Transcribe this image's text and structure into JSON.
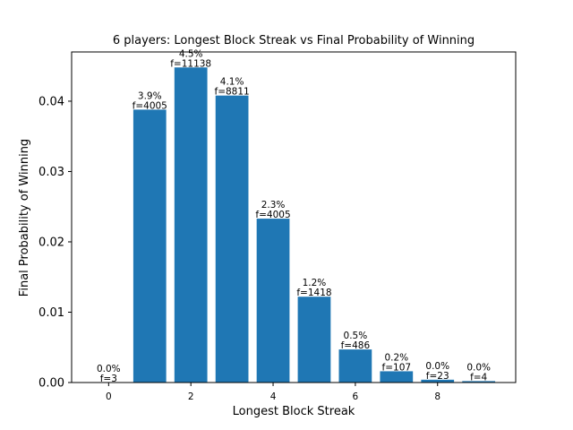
{
  "chart_data": {
    "type": "bar",
    "title": "6 players: Longest Block Streak vs Final Probability of Winning",
    "xlabel": "Longest Block Streak",
    "ylabel": "Final Probability of Winning",
    "x": [
      0,
      1,
      2,
      3,
      4,
      5,
      6,
      7,
      8,
      9
    ],
    "values": [
      0.0,
      0.0388,
      0.0448,
      0.0408,
      0.0233,
      0.0122,
      0.0047,
      0.0016,
      0.0004,
      0.0002
    ],
    "percent_labels": [
      "0.0%",
      "3.9%",
      "4.5%",
      "4.1%",
      "2.3%",
      "1.2%",
      "0.5%",
      "0.2%",
      "0.0%",
      "0.0%"
    ],
    "freq_labels": [
      "f=3",
      "f=4005",
      "f=11138",
      "f=8811",
      "f=4005",
      "f=1418",
      "f=486",
      "f=107",
      "f=23",
      "f=4"
    ],
    "xticks": [
      0,
      2,
      4,
      6,
      8
    ],
    "yticks": [
      0.0,
      0.01,
      0.02,
      0.03,
      0.04
    ],
    "ytick_labels": [
      "0.00",
      "0.01",
      "0.02",
      "0.03",
      "0.04"
    ],
    "xlim": [
      -0.9,
      9.9
    ],
    "ylim": [
      0,
      0.047
    ],
    "grid": false,
    "bar_color": "#1f77b4"
  }
}
